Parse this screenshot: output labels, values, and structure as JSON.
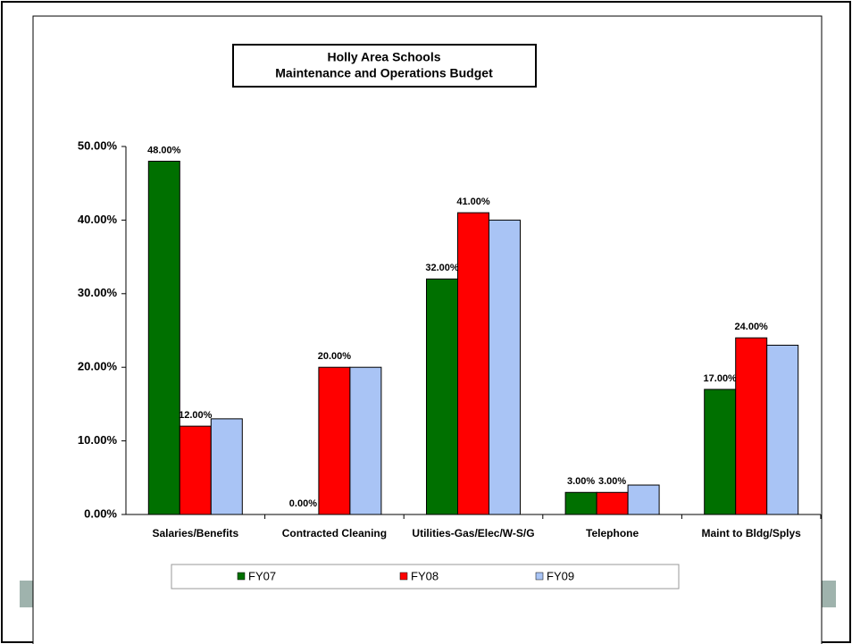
{
  "chart_data": {
    "type": "bar",
    "title": [
      "Holly Area Schools",
      "Maintenance and Operations Budget"
    ],
    "categories": [
      "Salaries/Benefits",
      "Contracted Cleaning",
      "Utilities-Gas/Elec/W-S/G",
      "Telephone",
      "Maint to Bldg/Splys"
    ],
    "series": [
      {
        "name": "FY07",
        "color": "#007000",
        "values": [
          48,
          0,
          32,
          3,
          17
        ],
        "value_labels": [
          "48.00%",
          "0.00%",
          "32.00%",
          "3.00%",
          "17.00%"
        ]
      },
      {
        "name": "FY08",
        "color": "#ff0000",
        "values": [
          12,
          20,
          41,
          3,
          24
        ],
        "value_labels": [
          "12.00%",
          "20.00%",
          "41.00%",
          "3.00%",
          "24.00%"
        ]
      },
      {
        "name": "FY09",
        "color": "#a9c4f5",
        "values": [
          13,
          20,
          40,
          4,
          23
        ]
      }
    ],
    "ylim": [
      0,
      50
    ],
    "yticks": [
      {
        "value": 0,
        "label": "0.00%"
      },
      {
        "value": 10,
        "label": "10.00%"
      },
      {
        "value": 20,
        "label": "20.00%"
      },
      {
        "value": 30,
        "label": "30.00%"
      },
      {
        "value": 40,
        "label": "40.00%"
      },
      {
        "value": 50,
        "label": "50.00%"
      }
    ],
    "grid": false,
    "legend": "bottom"
  }
}
